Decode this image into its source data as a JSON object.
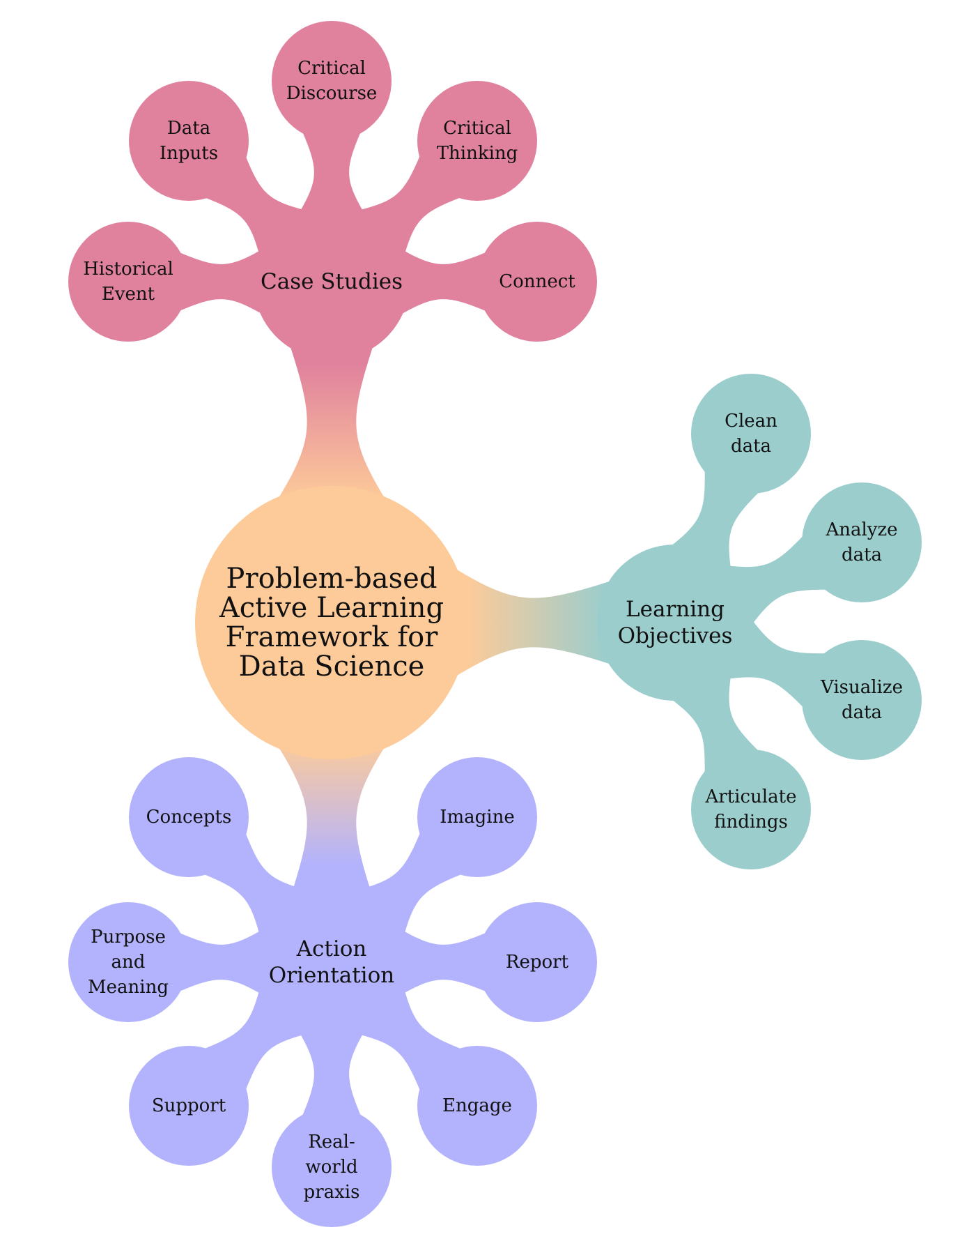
{
  "colors": {
    "center": "#FDCB99",
    "case_studies": "#E0819E",
    "learning_objectives": "#9BCDCD",
    "action_orientation": "#B3B3FD"
  },
  "center": {
    "lines": [
      "Problem-based",
      "Active Learning",
      "Framework for",
      "Data Science"
    ]
  },
  "branches": [
    {
      "id": "case_studies",
      "lines": [
        "Case Studies"
      ],
      "children": [
        {
          "lines": [
            "Historical",
            "Event"
          ]
        },
        {
          "lines": [
            "Data",
            "Inputs"
          ]
        },
        {
          "lines": [
            "Critical",
            "Discourse"
          ]
        },
        {
          "lines": [
            "Critical",
            "Thinking"
          ]
        },
        {
          "lines": [
            "Connect"
          ]
        }
      ]
    },
    {
      "id": "learning_objectives",
      "lines": [
        "Learning",
        "Objectives"
      ],
      "children": [
        {
          "lines": [
            "Clean",
            "data"
          ]
        },
        {
          "lines": [
            "Analyze",
            "data"
          ]
        },
        {
          "lines": [
            "Visualize",
            "data"
          ]
        },
        {
          "lines": [
            "Articulate",
            "findings"
          ]
        }
      ]
    },
    {
      "id": "action_orientation",
      "lines": [
        "Action",
        "Orientation"
      ],
      "children": [
        {
          "lines": [
            "Concepts"
          ]
        },
        {
          "lines": [
            "Purpose",
            "and",
            "Meaning"
          ]
        },
        {
          "lines": [
            "Support"
          ]
        },
        {
          "lines": [
            "Real-",
            "world",
            "praxis"
          ]
        },
        {
          "lines": [
            "Engage"
          ]
        },
        {
          "lines": [
            "Report"
          ]
        },
        {
          "lines": [
            "Imagine"
          ]
        }
      ]
    }
  ]
}
